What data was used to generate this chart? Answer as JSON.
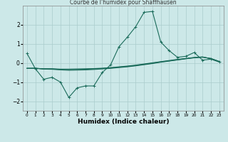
{
  "title": "Courbe de l'humidex pour Shaffhausen",
  "xlabel": "Humidex (Indice chaleur)",
  "background_color": "#cce8e8",
  "grid_color": "#aacccc",
  "line_color": "#1a6b5a",
  "x_values": [
    0,
    1,
    2,
    3,
    4,
    5,
    6,
    7,
    8,
    9,
    10,
    11,
    12,
    13,
    14,
    15,
    16,
    17,
    18,
    19,
    20,
    21,
    22,
    23
  ],
  "main_y": [
    0.5,
    -0.3,
    -0.85,
    -0.75,
    -1.0,
    -1.8,
    -1.3,
    -1.2,
    -1.2,
    -0.5,
    -0.1,
    0.85,
    1.35,
    1.9,
    2.65,
    2.7,
    1.1,
    0.65,
    0.3,
    0.35,
    0.55,
    0.15,
    0.2,
    0.05
  ],
  "line2_y": [
    -0.28,
    -0.28,
    -0.3,
    -0.3,
    -0.32,
    -0.32,
    -0.31,
    -0.3,
    -0.29,
    -0.27,
    -0.24,
    -0.2,
    -0.16,
    -0.11,
    -0.05,
    0.01,
    0.07,
    0.13,
    0.19,
    0.24,
    0.29,
    0.32,
    0.22,
    0.07
  ],
  "line3_y": [
    -0.28,
    -0.28,
    -0.32,
    -0.33,
    -0.36,
    -0.38,
    -0.37,
    -0.36,
    -0.34,
    -0.31,
    -0.28,
    -0.24,
    -0.2,
    -0.15,
    -0.09,
    -0.03,
    0.04,
    0.1,
    0.16,
    0.22,
    0.27,
    0.3,
    0.24,
    0.08
  ],
  "line4_y": [
    -0.28,
    -0.27,
    -0.31,
    -0.31,
    -0.34,
    -0.35,
    -0.34,
    -0.33,
    -0.31,
    -0.29,
    -0.26,
    -0.22,
    -0.18,
    -0.13,
    -0.07,
    -0.01,
    0.06,
    0.11,
    0.17,
    0.23,
    0.28,
    0.31,
    0.23,
    0.08
  ],
  "xlim": [
    -0.5,
    23.5
  ],
  "ylim": [
    -2.5,
    3.0
  ],
  "yticks": [
    -2,
    -1,
    0,
    1,
    2
  ],
  "xticks": [
    0,
    1,
    2,
    3,
    4,
    5,
    6,
    7,
    8,
    9,
    10,
    11,
    12,
    13,
    14,
    15,
    16,
    17,
    18,
    19,
    20,
    21,
    22,
    23
  ],
  "marker": "+"
}
